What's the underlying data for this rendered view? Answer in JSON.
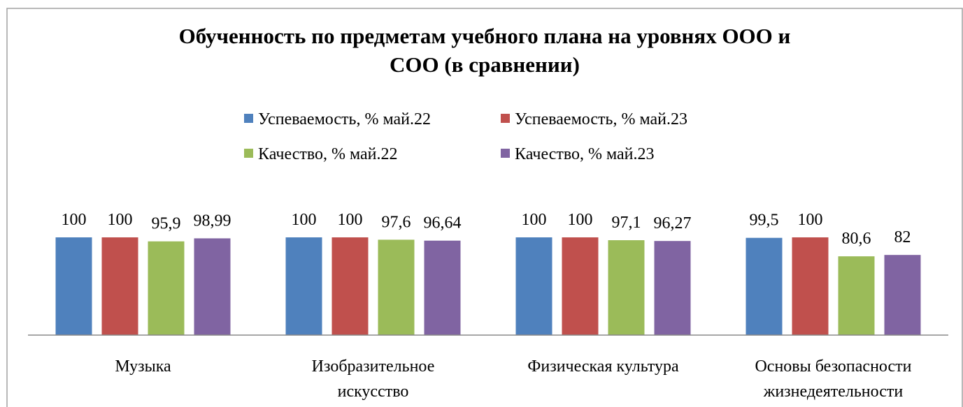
{
  "chart_data": {
    "type": "bar",
    "title": "Обученность по предметам учебного плана на уровнях ООО и\nСОО (в сравнении)",
    "categories": [
      "Музыка",
      "Изобразительное\nискусство",
      "Физическая культура",
      "Основы безопасности\nжизнедеятельности"
    ],
    "series": [
      {
        "name": "Успеваемость, % май.22",
        "color": "#4f81bd",
        "values": [
          100,
          100,
          100,
          99.5
        ],
        "value_labels": [
          "100",
          "100",
          "100",
          "99,5"
        ]
      },
      {
        "name": "Успеваемость, % май.23",
        "color": "#c0504d",
        "values": [
          100,
          100,
          100,
          100
        ],
        "value_labels": [
          "100",
          "100",
          "100",
          "100"
        ]
      },
      {
        "name": "Качество, % май.22",
        "color": "#9bbb59",
        "values": [
          95.9,
          97.6,
          97.1,
          80.6
        ],
        "value_labels": [
          "95,9",
          "97,6",
          "97,1",
          "80,6"
        ]
      },
      {
        "name": "Качество, % май.23",
        "color": "#8064a2",
        "values": [
          98.99,
          96.64,
          96.27,
          82
        ],
        "value_labels": [
          "98,99",
          "96,64",
          "96,27",
          "82"
        ]
      }
    ],
    "ylim": [
      0,
      100
    ]
  }
}
